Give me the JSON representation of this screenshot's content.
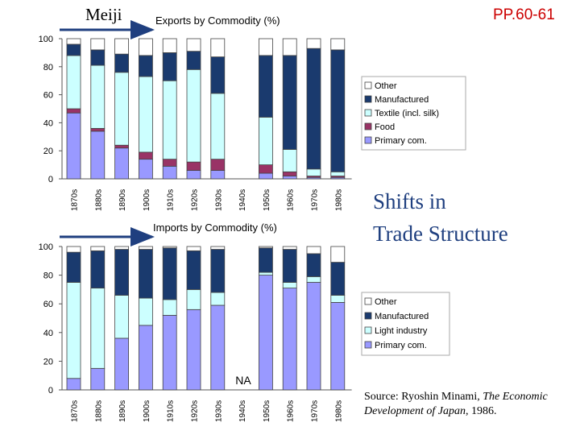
{
  "header": {
    "meiji_label": "Meiji",
    "page_ref": "PP.60-61"
  },
  "slide": {
    "title_line1": "Shifts in",
    "title_line2": "Trade Structure"
  },
  "source": {
    "prefix": "Source: Ryoshin Minami, ",
    "book_title": "The Economic Development of Japan",
    "suffix": ", 1986."
  },
  "colors": {
    "other": "#ffffff",
    "manufactured": "#1a3a6e",
    "textile": "#ccffff",
    "food": "#993366",
    "primary": "#9999ff",
    "arrow": "#1f3f7f"
  },
  "chart_data": [
    {
      "type": "bar",
      "stacked": true,
      "title": "Exports by Commodity (%)",
      "categories": [
        "1870s",
        "1880s",
        "1890s",
        "1900s",
        "1910s",
        "1920s",
        "1930s",
        "1940s",
        "1950s",
        "1960s",
        "1970s",
        "1980s"
      ],
      "ylim": [
        0,
        100
      ],
      "yticks": [
        0,
        20,
        40,
        60,
        80,
        100
      ],
      "series": [
        {
          "name": "Primary com.",
          "key": "primary",
          "values": [
            47,
            34,
            22,
            14,
            9,
            6,
            6,
            null,
            4,
            2,
            1,
            1
          ]
        },
        {
          "name": "Food",
          "key": "food",
          "values": [
            3,
            2,
            2,
            5,
            5,
            6,
            8,
            null,
            6,
            3,
            1,
            1
          ]
        },
        {
          "name": "Textile (incl. silk)",
          "key": "textile",
          "values": [
            38,
            45,
            52,
            54,
            56,
            66,
            47,
            null,
            34,
            16,
            5,
            3
          ]
        },
        {
          "name": "Manufactured",
          "key": "manufactured",
          "values": [
            8,
            11,
            13,
            15,
            20,
            13,
            26,
            null,
            44,
            67,
            86,
            87
          ]
        },
        {
          "name": "Other",
          "key": "other",
          "values": [
            4,
            8,
            11,
            12,
            10,
            9,
            13,
            null,
            12,
            12,
            7,
            8
          ]
        }
      ],
      "legend": [
        "Other",
        "Manufactured",
        "Textile (incl. silk)",
        "Food",
        "Primary com."
      ],
      "legend_position": "right"
    },
    {
      "type": "bar",
      "stacked": true,
      "title": "Imports by Commodity (%)",
      "categories": [
        "1870s",
        "1880s",
        "1890s",
        "1900s",
        "1910s",
        "1920s",
        "1930s",
        "1940s",
        "1950s",
        "1960s",
        "1970s",
        "1980s"
      ],
      "ylim": [
        0,
        100
      ],
      "yticks": [
        0,
        20,
        40,
        60,
        80,
        100
      ],
      "annotation": "NA",
      "series": [
        {
          "name": "Primary com.",
          "key": "primary",
          "values": [
            8,
            15,
            36,
            45,
            52,
            56,
            59,
            null,
            80,
            71,
            75,
            61
          ]
        },
        {
          "name": "Light industry",
          "key": "textile",
          "values": [
            67,
            56,
            30,
            19,
            11,
            14,
            9,
            null,
            2,
            4,
            4,
            5
          ]
        },
        {
          "name": "Manufactured",
          "key": "manufactured",
          "values": [
            21,
            26,
            32,
            34,
            36,
            27,
            30,
            null,
            17,
            23,
            16,
            23
          ]
        },
        {
          "name": "Other",
          "key": "other",
          "values": [
            4,
            3,
            2,
            2,
            1,
            3,
            2,
            null,
            1,
            2,
            5,
            11
          ]
        }
      ],
      "legend": [
        "Other",
        "Manufactured",
        "Light industry",
        "Primary com."
      ],
      "legend_position": "right"
    }
  ]
}
